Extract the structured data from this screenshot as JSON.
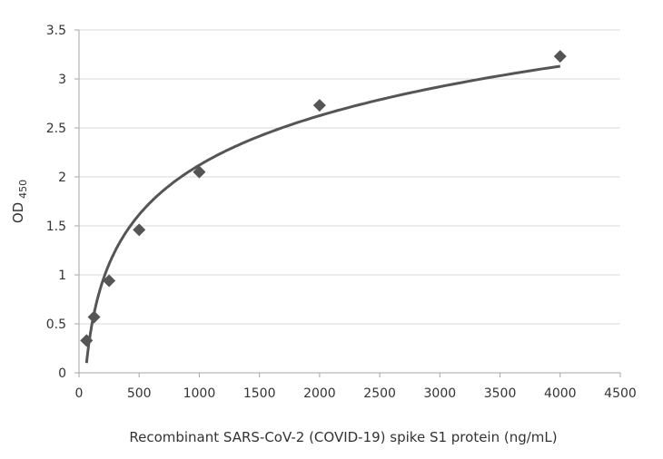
{
  "chart_data": {
    "type": "scatter",
    "title": "",
    "xlabel": "Recombinant SARS-CoV-2 (COVID-19) spike S1 protein (ng/mL)",
    "ylabel": "OD",
    "ylabel_subscript": "450",
    "xlim": [
      0,
      4500
    ],
    "ylim": [
      0,
      3.5
    ],
    "xticks": [
      0,
      500,
      1000,
      1500,
      2000,
      2500,
      3000,
      3500,
      4000,
      4500
    ],
    "yticks": [
      0,
      0.5,
      1,
      1.5,
      2,
      2.5,
      3,
      3.5
    ],
    "ytick_labels": [
      "0",
      "0.5",
      "1",
      "1.5",
      "2",
      "2.5",
      "3",
      "3.5"
    ],
    "grid": "horizontal",
    "legend": "none",
    "marker": "diamond",
    "series": [
      {
        "x": [
          62.5,
          125,
          250,
          500,
          1000,
          2000,
          4000
        ],
        "y": [
          0.33,
          0.57,
          0.94,
          1.46,
          2.05,
          2.73,
          3.23
        ]
      }
    ],
    "trendline": {
      "type": "logarithmic",
      "a": 0.7286,
      "b": -2.913,
      "x_range": [
        62.5,
        4000
      ]
    },
    "colors": {
      "marker": "#555555",
      "trendline": "#555555",
      "grid": "#d9d9d9",
      "axis": "#a6a6a6"
    }
  }
}
